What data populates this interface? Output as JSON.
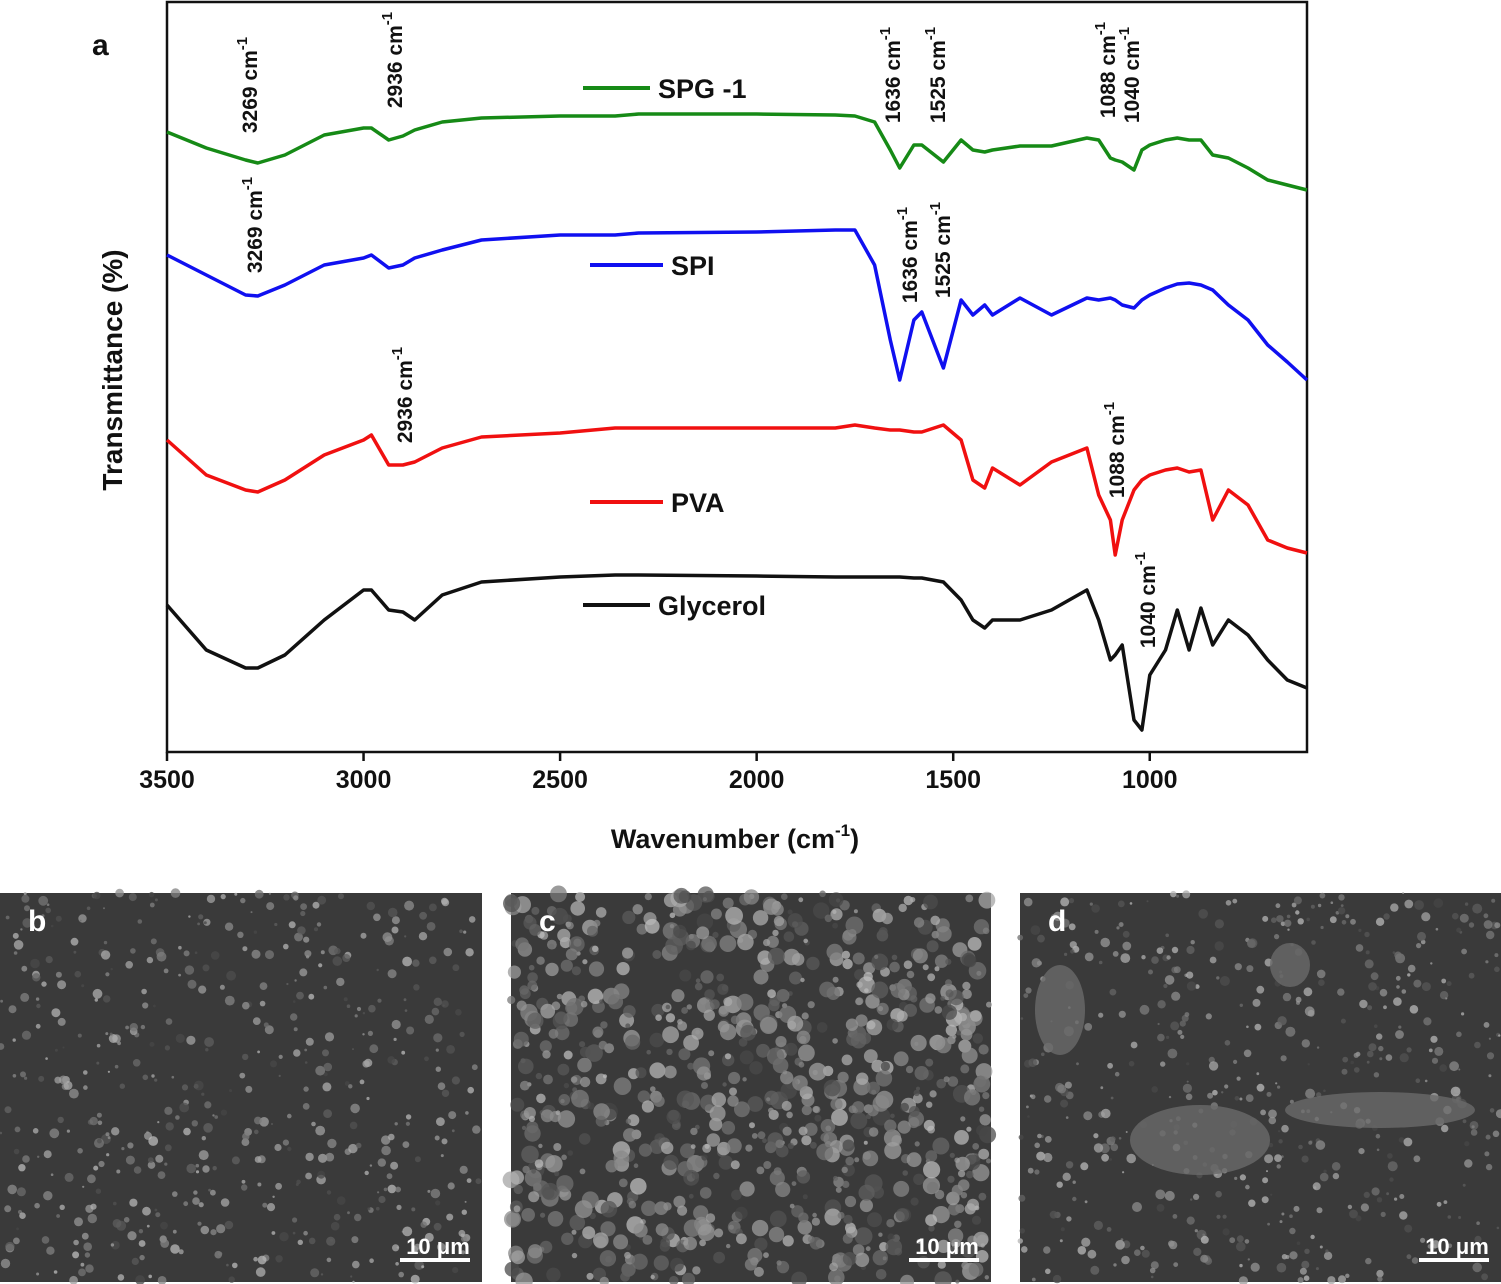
{
  "chart_data": {
    "type": "line",
    "panel_label": "a",
    "xlabel": "Wavenumber (cm",
    "xlabel_sup": "-1",
    "xlabel_end": ")",
    "ylabel": "Transmittance (%)",
    "xlim": [
      3500,
      600
    ],
    "xticks": [
      3500,
      3000,
      2500,
      2000,
      1500,
      1000
    ],
    "ylim": [
      0,
      750
    ],
    "x": [
      3500,
      3400,
      3300,
      3269,
      3200,
      3100,
      3000,
      2980,
      2936,
      2900,
      2870,
      2800,
      2700,
      2500,
      2360,
      2300,
      2000,
      1800,
      1750,
      1700,
      1660,
      1636,
      1600,
      1580,
      1525,
      1480,
      1450,
      1420,
      1400,
      1330,
      1250,
      1160,
      1130,
      1100,
      1088,
      1070,
      1040,
      1020,
      1000,
      960,
      930,
      900,
      870,
      840,
      800,
      750,
      700,
      650,
      600
    ],
    "series": [
      {
        "name": "SPG -1",
        "color": "#168a16",
        "values": [
          620,
          604,
          592,
          589,
          597,
          617,
          624,
          624,
          612,
          616,
          622,
          630,
          634,
          636,
          636,
          638,
          638,
          637,
          636,
          630,
          602,
          584,
          607,
          607,
          590,
          612,
          602,
          600,
          602,
          606,
          606,
          614,
          612,
          594,
          592,
          590,
          582,
          602,
          607,
          612,
          614,
          612,
          612,
          597,
          594,
          584,
          572,
          567,
          562
        ]
      },
      {
        "name": "SPI",
        "color": "#1010f0",
        "values": [
          497,
          477,
          457,
          456,
          467,
          487,
          494,
          497,
          484,
          487,
          494,
          502,
          512,
          517,
          517,
          519,
          520,
          522,
          522,
          487,
          412,
          372,
          432,
          440,
          384,
          452,
          437,
          447,
          437,
          454,
          437,
          454,
          452,
          454,
          452,
          447,
          444,
          452,
          457,
          464,
          468,
          469,
          467,
          462,
          447,
          432,
          407,
          390,
          372
        ]
      },
      {
        "name": "PVA",
        "color": "#f01010",
        "values": [
          312,
          277,
          262,
          260,
          272,
          297,
          312,
          317,
          287,
          287,
          290,
          304,
          315,
          319,
          324,
          324,
          324,
          324,
          327,
          324,
          322,
          322,
          320,
          320,
          327,
          312,
          272,
          264,
          284,
          267,
          290,
          304,
          257,
          232,
          197,
          232,
          262,
          272,
          277,
          282,
          284,
          280,
          282,
          232,
          262,
          247,
          212,
          204,
          199
        ]
      },
      {
        "name": "Glycerol",
        "color": "#111111",
        "values": [
          147,
          102,
          84,
          84,
          97,
          132,
          162,
          162,
          142,
          140,
          132,
          157,
          170,
          175,
          177,
          177,
          176,
          175,
          175,
          175,
          175,
          175,
          174,
          174,
          170,
          152,
          132,
          124,
          132,
          132,
          142,
          162,
          132,
          92,
          97,
          107,
          32,
          22,
          77,
          102,
          142,
          102,
          144,
          107,
          132,
          117,
          92,
          72,
          64
        ]
      }
    ],
    "annotations": [
      {
        "text": "3269 cm",
        "sup": "-1"
      },
      {
        "text": "2936 cm",
        "sup": "-1"
      },
      {
        "text": "1636 cm",
        "sup": "-1"
      },
      {
        "text": "1525 cm",
        "sup": "-1"
      },
      {
        "text": "1088 cm",
        "sup": "-1"
      },
      {
        "text": "1040 cm",
        "sup": "-1"
      },
      {
        "text": "3269 cm",
        "sup": "-1"
      },
      {
        "text": "1636 cm",
        "sup": "-1"
      },
      {
        "text": "1525 cm",
        "sup": "-1"
      },
      {
        "text": "2936 cm",
        "sup": "-1"
      },
      {
        "text": "1088 cm",
        "sup": "-1"
      },
      {
        "text": "1040 cm",
        "sup": "-1"
      }
    ]
  },
  "panels": [
    {
      "label": "b",
      "scale_bar": "10 μm"
    },
    {
      "label": "c",
      "scale_bar": "10 μm"
    },
    {
      "label": "d",
      "scale_bar": "10 μm"
    }
  ]
}
